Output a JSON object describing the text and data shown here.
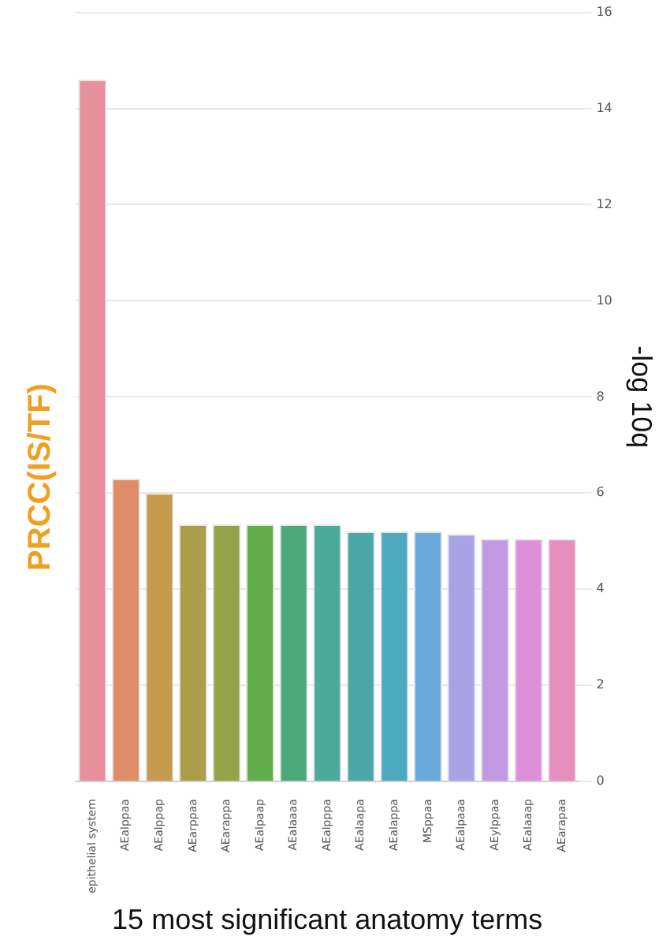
{
  "chart_data": {
    "type": "bar",
    "title": "PRCC(IS/TF)",
    "xlabel": "15 most significant anatomy terms",
    "ylabel": "-log 10q",
    "categories": [
      "epithelial system",
      "AEalppaa",
      "AEalppap",
      "AEarppaa",
      "AEarappa",
      "AEalpaap",
      "AEaIaaaa",
      "AEalpppa",
      "AEalaapa",
      "AEalappa",
      "MSppaa",
      "AEalpaaa",
      "AEylppaa",
      "AEaIaaap",
      "AEarapaa"
    ],
    "values": [
      14.6,
      6.3,
      6.0,
      5.35,
      5.35,
      5.35,
      5.35,
      5.35,
      5.2,
      5.2,
      5.2,
      5.15,
      5.05,
      5.05,
      5.05
    ],
    "colors": [
      "#e8919c",
      "#df8d68",
      "#c49a4c",
      "#aa9e4a",
      "#94a348",
      "#63ae4c",
      "#4caa7a",
      "#4aab98",
      "#4aa9a8",
      "#4da9be",
      "#6aaadc",
      "#a9a3e5",
      "#c399e3",
      "#de8fd9",
      "#e68fbf"
    ],
    "ylim": [
      0,
      16
    ],
    "yticks": [
      0,
      2,
      4,
      6,
      8,
      10,
      12,
      14,
      16
    ],
    "grid": "y",
    "legend": false
  }
}
